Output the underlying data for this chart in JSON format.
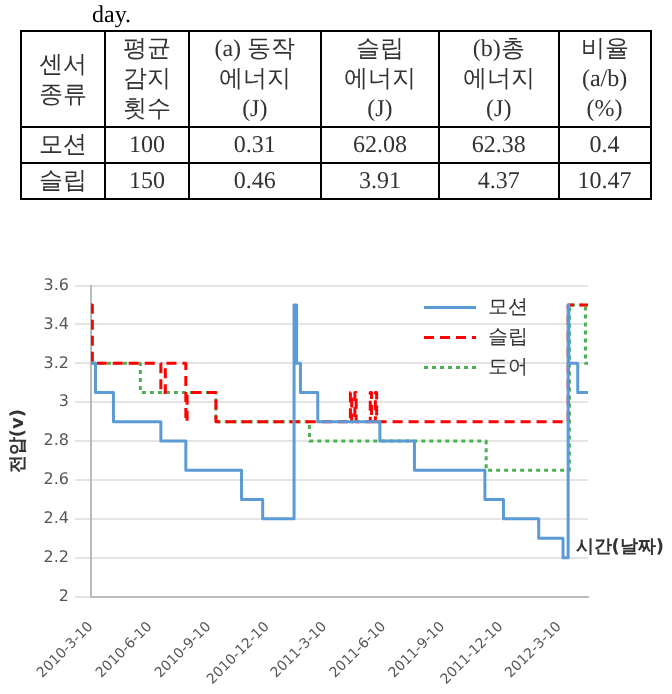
{
  "chart_data": {
    "type": "step",
    "xlabel": "시간(날짜)",
    "ylabel": "전압(v)",
    "annotations": [
      "day.",
      "센서\n종류",
      "평균\n감지\n횟수",
      "(a) 동작\n에너지\n(J)",
      "슬립\n에너지\n(J)",
      "(b)총\n에너지\n(J)",
      "비율\n(a/b)\n(%)",
      "모션",
      "100",
      "0.31",
      "62.08",
      "62.38",
      "0.4",
      "슬립",
      "150",
      "0.46",
      "3.91",
      "4.37",
      "10.47"
    ],
    "xlim": [
      "2010-03-10",
      "2012-04-24"
    ],
    "xticks": [
      {
        "value": "2010-03-10",
        "label": "2010-3-10"
      },
      {
        "value": "2010-06-10",
        "label": "2010-6-10"
      },
      {
        "value": "2010-09-10",
        "label": "2010-9-10"
      },
      {
        "value": "2010-12-10",
        "label": "2010-12-10"
      },
      {
        "value": "2011-03-10",
        "label": "2011-3-10"
      },
      {
        "value": "2011-06-10",
        "label": "2011-6-10"
      },
      {
        "value": "2011-09-10",
        "label": "2011-9-10"
      },
      {
        "value": "2011-12-10",
        "label": "2011-12-10"
      },
      {
        "value": "2012-03-10",
        "label": "2012-3-10"
      }
    ],
    "ylim": [
      2,
      3.6
    ],
    "yticks": [
      2,
      2.2,
      2.4,
      2.6,
      2.8,
      3,
      3.2,
      3.4,
      3.6
    ],
    "grid": "y",
    "legend": "top right",
    "marker": "none",
    "series": [
      {
        "name": "모션",
        "color": "#5b9bd5",
        "line_style": "solid",
        "x": [
          "2010-03-10",
          "2010-03-17",
          "2010-04-14",
          "2010-06-27",
          "2010-08-05",
          "2010-10-31",
          "2010-12-03",
          "2011-01-21",
          "2011-01-25",
          "2011-01-31",
          "2011-02-27",
          "2011-06-04",
          "2011-07-28",
          "2011-11-15",
          "2011-12-14",
          "2012-02-07",
          "2012-03-16",
          "2012-03-24",
          "2012-03-25",
          "2012-04-08",
          "2012-04-24"
        ],
        "values": [
          3.2,
          3.05,
          2.9,
          2.8,
          2.65,
          2.5,
          2.4,
          3.5,
          3.2,
          3.05,
          2.9,
          2.8,
          2.65,
          2.5,
          2.4,
          2.3,
          2.2,
          3.5,
          3.2,
          3.05,
          3.05
        ]
      },
      {
        "name": "슬립",
        "color": "#ff0000",
        "line_style": "dashed",
        "x": [
          "2010-03-10",
          "2010-03-12",
          "2010-06-27",
          "2010-07-04",
          "2010-08-05",
          "2010-08-07",
          "2010-09-21",
          "2011-04-19",
          "2011-04-21",
          "2011-04-26",
          "2011-04-28",
          "2011-05-20",
          "2011-05-22",
          "2011-05-28",
          "2011-05-30",
          "2012-03-24",
          "2012-04-24"
        ],
        "values": [
          3.5,
          3.2,
          3.05,
          3.2,
          2.9,
          3.05,
          2.9,
          3.05,
          2.9,
          3.05,
          2.9,
          3.05,
          2.9,
          3.05,
          2.9,
          3.5,
          3.5
        ]
      },
      {
        "name": "도어",
        "color": "#4caf50",
        "line_style": "dotted",
        "x": [
          "2010-03-10",
          "2010-05-26",
          "2010-09-21",
          "2011-02-14",
          "2011-11-17",
          "2012-03-26",
          "2012-04-20",
          "2012-04-24"
        ],
        "values": [
          3.2,
          3.05,
          2.9,
          2.8,
          2.65,
          3.5,
          3.2,
          3.2
        ]
      }
    ]
  }
}
